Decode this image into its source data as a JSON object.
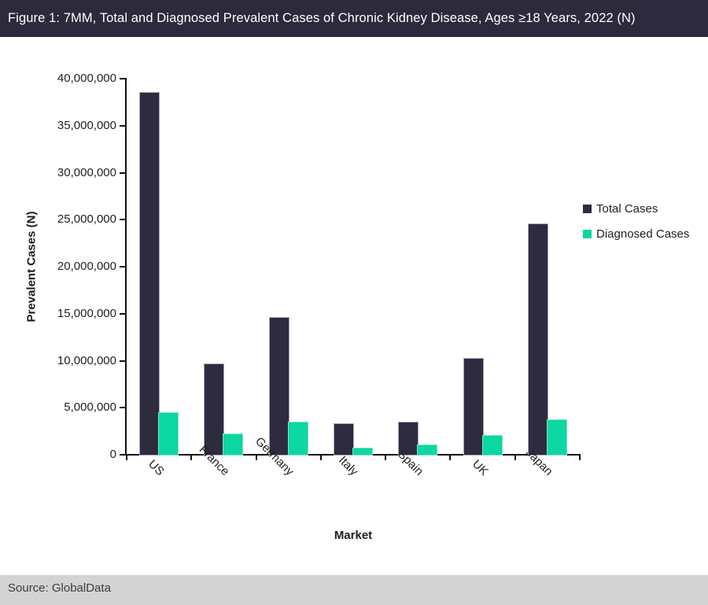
{
  "header": {
    "title": "Figure 1: 7MM, Total and Diagnosed Prevalent Cases of Chronic Kidney Disease, Ages ≥18 Years, 2022 (N)",
    "bg_color": "#2d2a3d"
  },
  "footer": {
    "source": "Source: GlobalData",
    "bg_color": "#d3d3d3"
  },
  "chart_data": {
    "type": "bar",
    "title": "7MM, Total and Diagnosed Prevalent Cases of Chronic Kidney Disease, Ages ≥18 Years, 2022 (N)",
    "categories": [
      "US",
      "France",
      "Germany",
      "Italy",
      "Spain",
      "UK",
      "Japan"
    ],
    "series": [
      {
        "name": "Total Cases",
        "color": "#2f2b3f",
        "values": [
          38500000,
          9600000,
          14600000,
          3300000,
          3400000,
          10200000,
          24500000
        ]
      },
      {
        "name": "Diagnosed Cases",
        "color": "#0cd7a2",
        "values": [
          4400000,
          2200000,
          3400000,
          700000,
          1000000,
          2000000,
          3700000
        ]
      }
    ],
    "xlabel": "Market",
    "ylabel": "Prevalent Cases (N)",
    "ylim": [
      0,
      40000000
    ],
    "y_tick_step": 5000000,
    "y_tick_labels": [
      "0",
      "5,000,000",
      "10,000,000",
      "15,000,000",
      "20,000,000",
      "25,000,000",
      "30,000,000",
      "35,000,000",
      "40,000,000"
    ],
    "grid": false,
    "legend_position": "right"
  }
}
